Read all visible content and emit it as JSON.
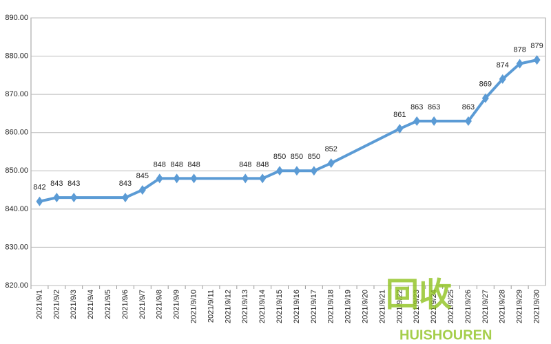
{
  "chart_data": {
    "type": "line",
    "categories": [
      "2021/9/1",
      "2021/9/2",
      "2021/9/3",
      "2021/9/4",
      "2021/9/5",
      "2021/9/6",
      "2021/9/7",
      "2021/9/8",
      "2021/9/9",
      "2021/9/10",
      "2021/9/11",
      "2021/9/12",
      "2021/9/13",
      "2021/9/14",
      "2021/9/15",
      "2021/9/16",
      "2021/9/17",
      "2021/9/18",
      "2021/9/19",
      "2021/9/20",
      "2021/9/21",
      "2021/9/22",
      "2021/9/23",
      "2021/9/24",
      "2021/9/25",
      "2021/9/26",
      "2021/9/27",
      "2021/9/28",
      "2021/9/29",
      "2021/9/30"
    ],
    "x": [
      "2021/9/1",
      "2021/9/2",
      "2021/9/3",
      "2021/9/6",
      "2021/9/7",
      "2021/9/8",
      "2021/9/9",
      "2021/9/10",
      "2021/9/13",
      "2021/9/14",
      "2021/9/15",
      "2021/9/16",
      "2021/9/17",
      "2021/9/18",
      "2021/9/22",
      "2021/9/23",
      "2021/9/24",
      "2021/9/26",
      "2021/9/27",
      "2021/9/28",
      "2021/9/29",
      "2021/9/30"
    ],
    "series": [
      {
        "color": "#5b9bd5",
        "values": [
          842,
          843,
          843,
          843,
          845,
          848,
          848,
          848,
          848,
          848,
          850,
          850,
          850,
          852,
          861,
          863,
          863,
          863,
          869,
          874,
          878,
          879
        ]
      }
    ],
    "ylim": [
      820,
      890
    ],
    "yticks": [
      {
        "value": 820,
        "label": "820.00"
      },
      {
        "value": 830,
        "label": "830.00"
      },
      {
        "value": 840,
        "label": "840.00"
      },
      {
        "value": 850,
        "label": "850.00"
      },
      {
        "value": 860,
        "label": "860.00"
      },
      {
        "value": 870,
        "label": "870.00"
      },
      {
        "value": 880,
        "label": "880.00"
      },
      {
        "value": 890,
        "label": "890.00"
      }
    ],
    "grid": true,
    "watermark": [
      "回收",
      "HUISHOUREN"
    ]
  }
}
